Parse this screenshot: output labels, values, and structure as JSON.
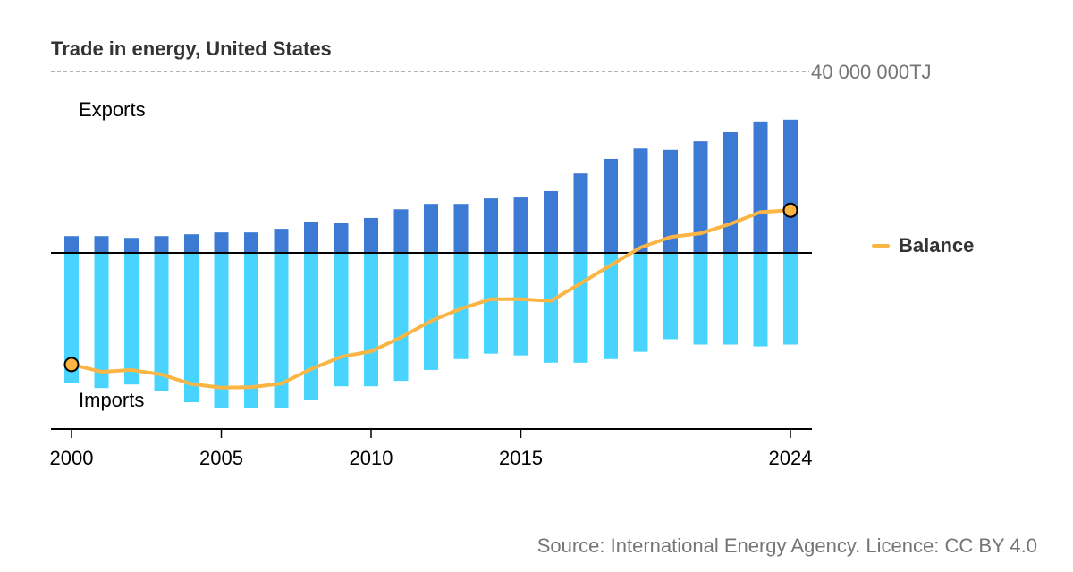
{
  "chart_data": {
    "type": "bar",
    "title": "Trade in energy, United States",
    "unit": "TJ",
    "top_gridline_label": "40 000 000TJ",
    "ylim": [
      -40000000,
      40000000
    ],
    "x": [
      2000,
      2001,
      2002,
      2003,
      2004,
      2005,
      2006,
      2007,
      2008,
      2009,
      2010,
      2011,
      2012,
      2013,
      2014,
      2015,
      2016,
      2017,
      2018,
      2019,
      2020,
      2021,
      2022,
      2023,
      2024
    ],
    "x_tick_labels": [
      "2000",
      "2005",
      "2010",
      "2015",
      "2024"
    ],
    "series": [
      {
        "name": "Exports",
        "kind": "bar",
        "color": "#3d7ad3",
        "values": [
          3700000,
          3700000,
          3300000,
          3700000,
          4100000,
          4500000,
          4500000,
          5300000,
          6900000,
          6500000,
          7700000,
          9600000,
          10800000,
          10800000,
          12000000,
          12400000,
          13600000,
          17500000,
          20700000,
          23000000,
          22700000,
          24600000,
          26600000,
          29000000,
          29400000
        ]
      },
      {
        "name": "Imports",
        "kind": "bar",
        "color": "#48d4ff",
        "values": [
          -28600000,
          -29800000,
          -29000000,
          -30500000,
          -32900000,
          -34100000,
          -34100000,
          -34100000,
          -32500000,
          -29400000,
          -29400000,
          -28200000,
          -25800000,
          -23400000,
          -22200000,
          -22600000,
          -24200000,
          -24200000,
          -23400000,
          -21800000,
          -19000000,
          -20200000,
          -20200000,
          -20600000,
          -20200000
        ]
      },
      {
        "name": "Balance",
        "kind": "line",
        "color": "#fbb545",
        "values": [
          -24600000,
          -26200000,
          -25800000,
          -26800000,
          -28900000,
          -29700000,
          -29600000,
          -28800000,
          -25600000,
          -22900000,
          -21700000,
          -18600000,
          -15000000,
          -12300000,
          -10200000,
          -10200000,
          -10600000,
          -6700000,
          -2700000,
          1200000,
          3500000,
          4300000,
          6400000,
          9000000,
          9400000
        ]
      }
    ],
    "annotations": [
      "Exports",
      "Imports"
    ],
    "legend": {
      "position": "right",
      "entries": [
        "Balance"
      ]
    },
    "grid": false
  },
  "title": "Trade in energy, United States",
  "series_labels": {
    "exports": "Exports",
    "imports": "Imports"
  },
  "legend": {
    "balance": "Balance"
  },
  "source": "Source: International Energy Agency. Licence: CC BY 4.0"
}
